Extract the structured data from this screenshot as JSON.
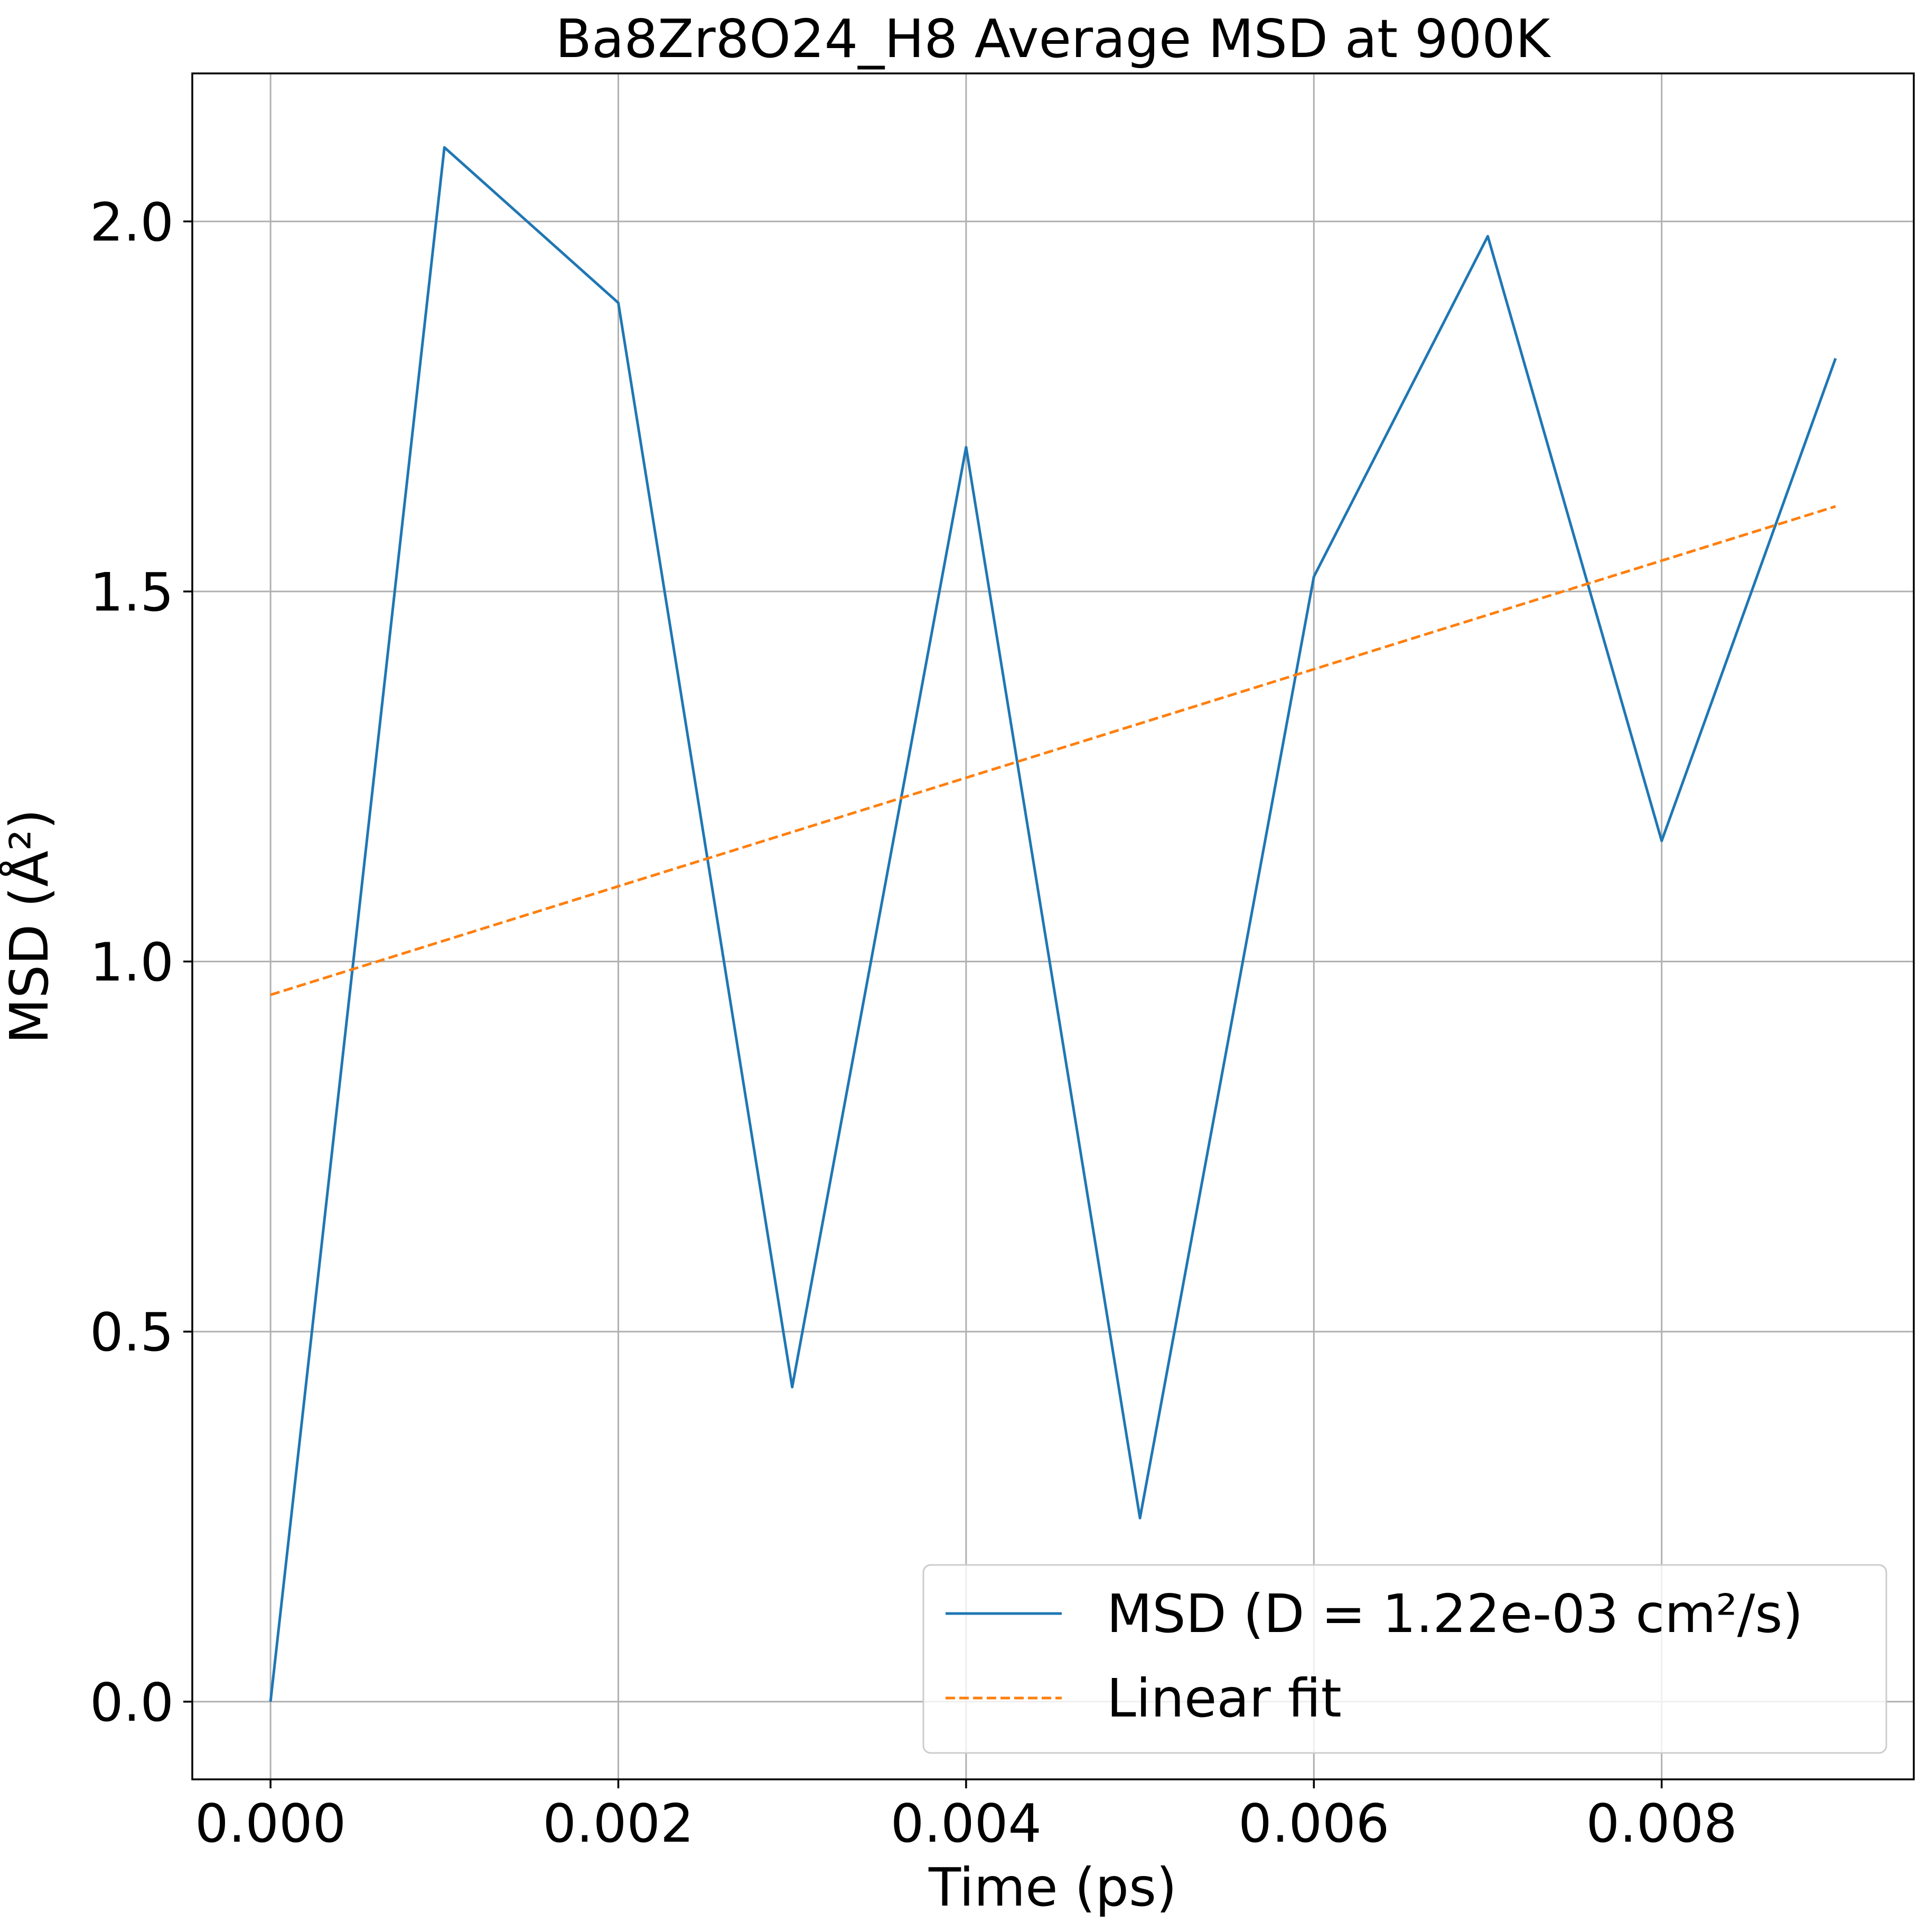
{
  "chart_data": {
    "type": "line",
    "title": "Ba8Zr8O24_H8 Average MSD at 900K",
    "xlabel": "Time (ps)",
    "ylabel": "MSD (Å²)",
    "xlim": [
      -0.00045,
      0.00945
    ],
    "ylim": [
      -0.105,
      2.2
    ],
    "grid": true,
    "legend_position": "lower-right",
    "x_ticks": [
      "0.000",
      "0.002",
      "0.004",
      "0.006",
      "0.008"
    ],
    "x_tick_values": [
      0,
      0.002,
      0.004,
      0.006,
      0.008
    ],
    "y_ticks": [
      "0.0",
      "0.5",
      "1.0",
      "1.5",
      "2.0"
    ],
    "y_tick_values": [
      0,
      0.5,
      1.0,
      1.5,
      2.0
    ],
    "series": [
      {
        "name": "MSD (D = 1.22e-03 cm²/s)",
        "color": "#1f77b4",
        "style": "solid",
        "x": [
          0,
          0.001,
          0.002,
          0.003,
          0.004,
          0.005,
          0.006,
          0.007,
          0.008,
          0.009
        ],
        "y": [
          0.0,
          2.1,
          1.89,
          0.425,
          1.695,
          0.248,
          1.52,
          1.98,
          1.163,
          1.815
        ]
      },
      {
        "name": "Linear fit",
        "color": "#ff7f0e",
        "style": "dashed",
        "x": [
          0,
          0.009
        ],
        "y": [
          0.955,
          1.615
        ]
      }
    ]
  }
}
